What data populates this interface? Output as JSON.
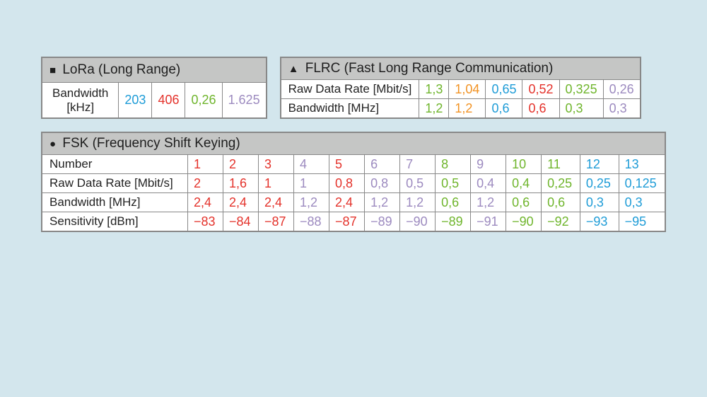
{
  "colors": {
    "blue": "#1e9cd7",
    "red": "#e4322b",
    "green": "#6fb52c",
    "violet": "#9c8abf",
    "orange": "#f29324"
  },
  "lora": {
    "title": "LoRa (Long Range)",
    "marker": "■",
    "row_label_line1": "Bandwidth",
    "row_label_line2": "[kHz]",
    "cells": [
      {
        "v": "203",
        "c": "blue"
      },
      {
        "v": "406",
        "c": "red"
      },
      {
        "v": "0,26",
        "c": "green"
      },
      {
        "v": "1.625",
        "c": "violet"
      }
    ]
  },
  "flrc": {
    "title": "FLRC (Fast Long Range Communication)",
    "marker": "▲",
    "rows": [
      {
        "label": "Raw Data Rate [Mbit/s]",
        "cells": [
          {
            "v": "1,3",
            "c": "green"
          },
          {
            "v": "1,04",
            "c": "orange"
          },
          {
            "v": "0,65",
            "c": "blue"
          },
          {
            "v": "0,52",
            "c": "red"
          },
          {
            "v": "0,325",
            "c": "green"
          },
          {
            "v": "0,26",
            "c": "violet"
          }
        ]
      },
      {
        "label": "Bandwidth [MHz]",
        "cells": [
          {
            "v": "1,2",
            "c": "green"
          },
          {
            "v": "1,2",
            "c": "orange"
          },
          {
            "v": "0,6",
            "c": "blue"
          },
          {
            "v": "0,6",
            "c": "red"
          },
          {
            "v": "0,3",
            "c": "green"
          },
          {
            "v": "0,3",
            "c": "violet"
          }
        ]
      }
    ]
  },
  "fsk": {
    "title": "FSK (Frequency Shift Keying)",
    "marker": "●",
    "col_colors": [
      "red",
      "red",
      "red",
      "violet",
      "red",
      "violet",
      "violet",
      "green",
      "violet",
      "green",
      "green",
      "blue",
      "blue"
    ],
    "rows": [
      {
        "label": "Number",
        "cells": [
          "1",
          "2",
          "3",
          "4",
          "5",
          "6",
          "7",
          "8",
          "9",
          "10",
          "11",
          "12",
          "13"
        ]
      },
      {
        "label": "Raw Data Rate [Mbit/s]",
        "cells": [
          "2",
          "1,6",
          "1",
          "1",
          "0,8",
          "0,8",
          "0,5",
          "0,5",
          "0,4",
          "0,4",
          "0,25",
          "0,25",
          "0,125"
        ]
      },
      {
        "label": "Bandwidth [MHz]",
        "cells": [
          "2,4",
          "2,4",
          "2,4",
          "1,2",
          "2,4",
          "1,2",
          "1,2",
          "0,6",
          "1,2",
          "0,6",
          "0,6",
          "0,3",
          "0,3"
        ]
      },
      {
        "label": "Sensitivity [dBm]",
        "cells": [
          "−83",
          "−84",
          "−87",
          "−88",
          "−87",
          "−89",
          "−90",
          "−89",
          "−91",
          "−90",
          "−92",
          "−93",
          "−95"
        ]
      }
    ]
  }
}
